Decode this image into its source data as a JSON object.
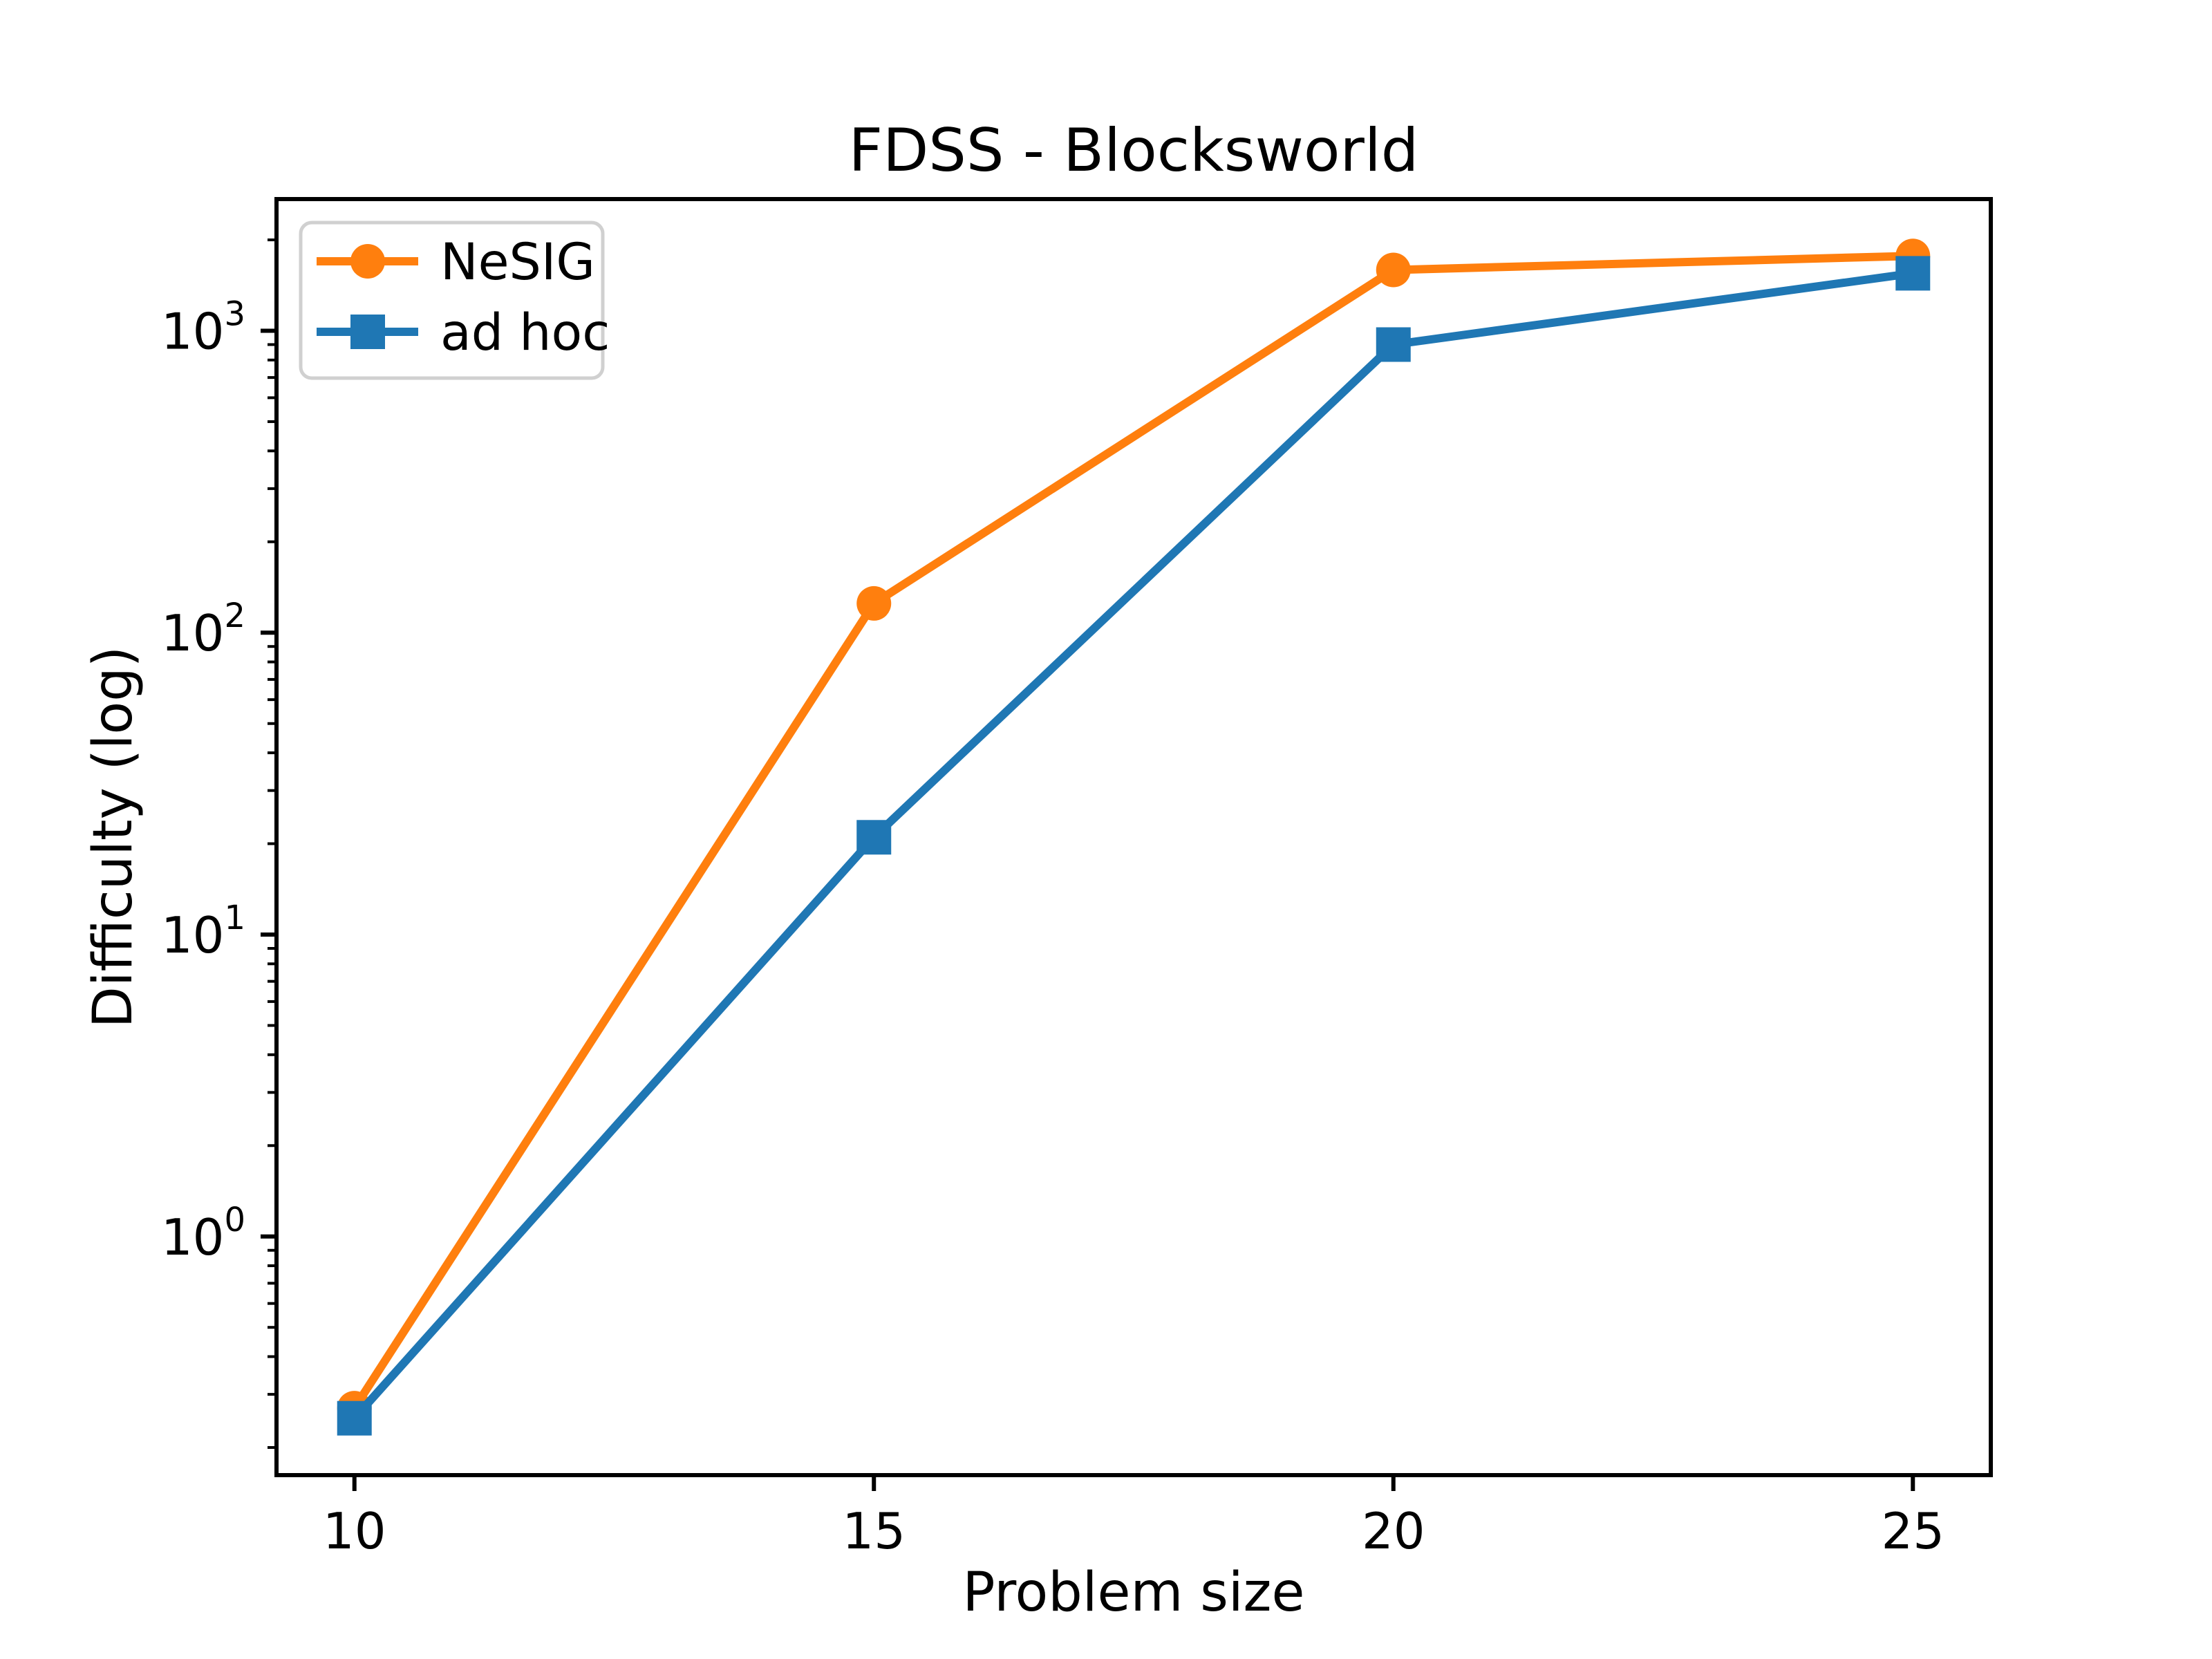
{
  "chart_data": {
    "type": "line",
    "title": "FDSS - Blocksworld",
    "xlabel": "Problem size",
    "ylabel": "Difficulty (log)",
    "x": [
      10,
      15,
      20,
      25
    ],
    "xticks": [
      10,
      15,
      20,
      25
    ],
    "xlim": [
      9.25,
      25.75
    ],
    "yscale": "log",
    "ytick_exponents": [
      0,
      1,
      2,
      3
    ],
    "ylim": [
      0.162,
      2730
    ],
    "grid": false,
    "legend_position": "upper left",
    "series": [
      {
        "name": "NeSIG",
        "color": "#ff7f0e",
        "marker": "circle",
        "values": [
          0.27,
          125,
          1590,
          1770
        ]
      },
      {
        "name": "ad hoc",
        "color": "#1f77b4",
        "marker": "square",
        "values": [
          0.25,
          21,
          900,
          1550
        ]
      }
    ],
    "colors": {
      "spine": "#000000",
      "tick": "#000000",
      "text": "#000000",
      "legend_border": "#d0d0d0",
      "background": "#ffffff"
    }
  }
}
